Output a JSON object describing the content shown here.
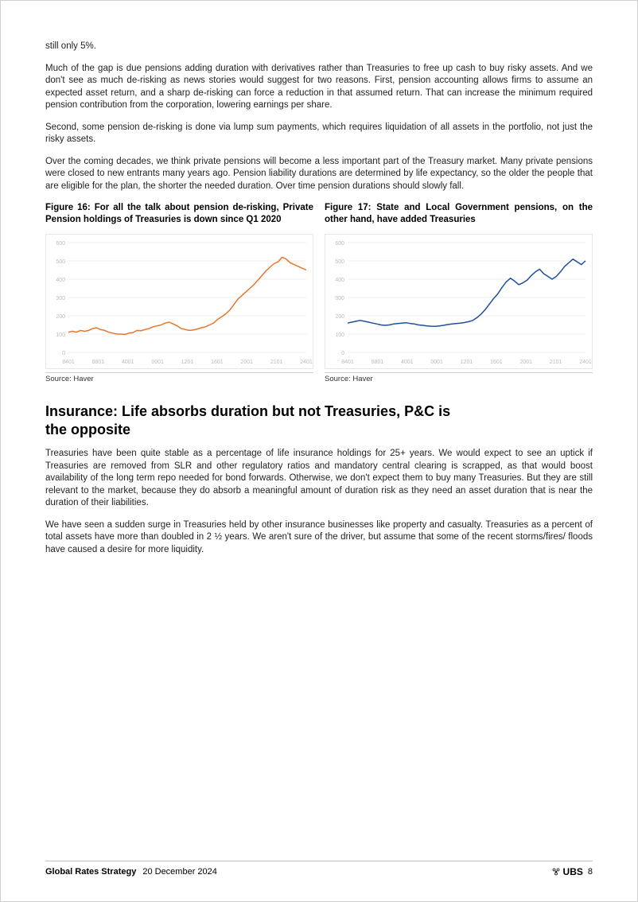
{
  "paragraphs": {
    "p0": "still only 5%.",
    "p1": "Much of the gap is due pensions adding duration with derivatives rather than Treasuries to free up cash to buy risky assets. And we don't see as much de-risking as news stories would suggest for two reasons. First, pension accounting allows firms to assume an expected asset return, and a sharp de-risking can force a reduction in that assumed return. That can increase the minimum required pension contribution from the corporation, lowering earnings per share.",
    "p2": "Second, some pension de-risking is done via lump sum payments, which requires liquidation of all assets in the portfolio, not just the risky assets.",
    "p3": "Over the coming decades, we think private pensions will become a less important part of the Treasury market. Many private pensions were closed to new entrants many years ago. Pension liability durations are determined by life expectancy, so the older the people that are eligible for the plan, the shorter the needed duration. Over time pension durations should slowly fall.",
    "p4": "Treasuries have been quite stable as a percentage of life insurance holdings for 25+ years. We would expect to see an uptick if Treasuries are removed from SLR and other regulatory ratios and mandatory central clearing is scrapped, as that would boost availability of the long term repo needed for bond forwards. Otherwise, we don't expect them to buy many Treasuries. But they are still relevant to the market, because they do absorb a meaningful amount of duration risk as they need an asset duration that is near the duration of their liabilities.",
    "p5": "We have seen a sudden surge in Treasuries held by other insurance businesses like property and casualty. Treasuries as a percent of total assets have more than doubled in 2 ½ years. We aren't sure of the driver, but assume that some of the recent storms/fires/ floods have caused a desire for more liquidity."
  },
  "section_heading": "Insurance: Life absorbs duration but not Treasuries, P&C is the opposite",
  "figure16": {
    "title": "Figure 16: For all the talk about pension de-risking, Private Pension holdings of Treasuries is down since Q1 2020",
    "source": "Source: Haver",
    "chart": {
      "type": "line",
      "line_color": "#e8762d",
      "line_width": 1.5,
      "background_color": "#ffffff",
      "grid_color": "#eeeeee",
      "ylim": [
        0,
        600
      ],
      "yticks": [
        0,
        100,
        200,
        300,
        400,
        500,
        600
      ],
      "xticks": [
        "8401",
        "8801",
        "4001",
        "0001",
        "1201",
        "1601",
        "2001",
        "2101",
        "2401"
      ],
      "values": [
        110,
        115,
        110,
        120,
        115,
        120,
        130,
        135,
        125,
        120,
        110,
        105,
        100,
        100,
        98,
        105,
        108,
        120,
        118,
        125,
        130,
        140,
        145,
        150,
        160,
        165,
        155,
        145,
        130,
        125,
        120,
        122,
        128,
        135,
        140,
        150,
        160,
        180,
        195,
        210,
        230,
        260,
        290,
        310,
        330,
        350,
        370,
        395,
        420,
        445,
        465,
        485,
        495,
        520,
        510,
        490,
        480,
        470,
        460,
        450
      ],
      "axis_fontsize": 7,
      "axis_color": "#bbbbbb"
    }
  },
  "figure17": {
    "title": "Figure 17: State and Local Government pensions, on the other hand, have added Treasuries",
    "source": "Source: Haver",
    "chart": {
      "type": "line",
      "line_color": "#1c4f9c",
      "line_width": 1.5,
      "background_color": "#ffffff",
      "grid_color": "#eeeeee",
      "ylim": [
        0,
        600
      ],
      "yticks": [
        0,
        100,
        200,
        300,
        400,
        500,
        600
      ],
      "xticks": [
        "8401",
        "8801",
        "4001",
        "0001",
        "1201",
        "1601",
        "2001",
        "2101",
        "2401"
      ],
      "values": [
        160,
        165,
        170,
        175,
        170,
        165,
        160,
        155,
        150,
        148,
        150,
        155,
        158,
        160,
        162,
        158,
        155,
        150,
        148,
        145,
        143,
        142,
        145,
        148,
        152,
        155,
        158,
        160,
        163,
        168,
        175,
        190,
        210,
        235,
        265,
        295,
        320,
        355,
        385,
        405,
        390,
        370,
        380,
        395,
        420,
        440,
        455,
        430,
        415,
        400,
        415,
        440,
        470,
        490,
        510,
        495,
        480,
        500
      ],
      "axis_fontsize": 7,
      "axis_color": "#bbbbbb"
    }
  },
  "footer": {
    "publication": "Global Rates Strategy",
    "date": "20 December 2024",
    "brand": "UBS",
    "page": "8"
  }
}
